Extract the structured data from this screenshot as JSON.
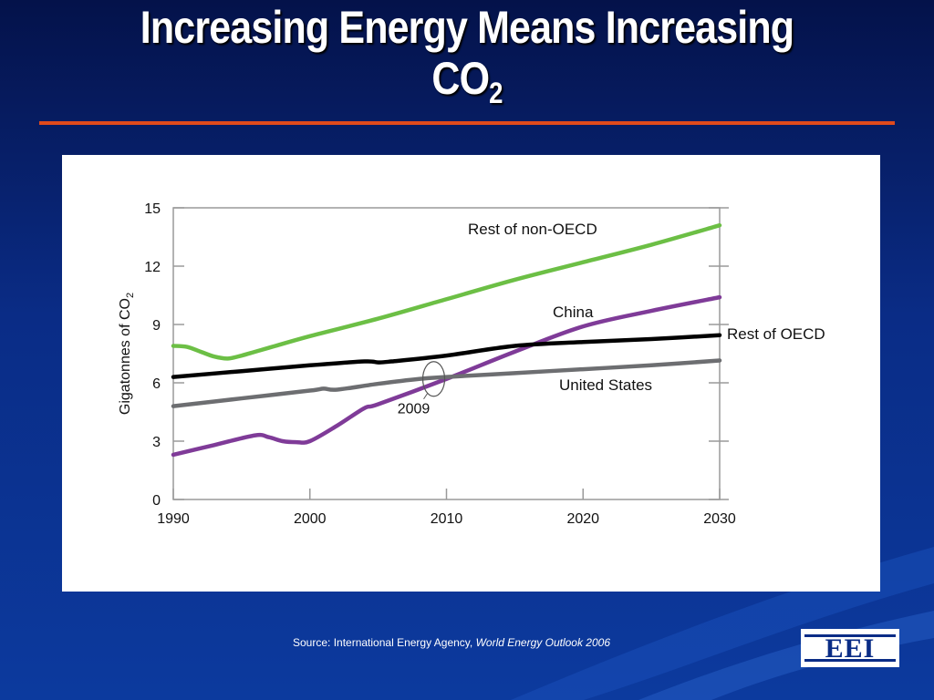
{
  "slide": {
    "title_line1": "Increasing Energy Means Increasing",
    "title_line2": "CO",
    "title_sub": "2",
    "source_prefix": "Source:  International Energy Agency, ",
    "source_italic": "World Energy Outlook 2006",
    "logo_text": "EEI",
    "colors": {
      "background": "#0a2c86",
      "title_rule": "#e04a1c",
      "panel": "#ffffff"
    }
  },
  "chart_data": {
    "type": "line",
    "title": "",
    "xlabel": "",
    "ylabel": "Gigatonnes of CO",
    "ylabel_sub": "2",
    "xlim": [
      1990,
      2030
    ],
    "ylim": [
      0,
      15
    ],
    "xticks": [
      1990,
      2000,
      2010,
      2020,
      2030
    ],
    "yticks": [
      0,
      3,
      6,
      9,
      12,
      15
    ],
    "grid": false,
    "series": [
      {
        "name": "Rest of non-OECD",
        "color": "#6cbf45",
        "x": [
          1990,
          1991,
          1992,
          1993,
          1994,
          1995,
          1996,
          1997,
          2000,
          2005,
          2010,
          2015,
          2020,
          2025,
          2030
        ],
        "values": [
          7.9,
          7.85,
          7.6,
          7.35,
          7.25,
          7.4,
          7.6,
          7.8,
          8.4,
          9.3,
          10.3,
          11.3,
          12.2,
          13.1,
          14.1
        ]
      },
      {
        "name": "China",
        "color": "#7f3b98",
        "x": [
          1990,
          1993,
          1996,
          1997,
          1998,
          1999,
          2000,
          2002,
          2004,
          2005,
          2010,
          2015,
          2020,
          2025,
          2030
        ],
        "values": [
          2.3,
          2.8,
          3.3,
          3.2,
          3.0,
          2.95,
          3.0,
          3.8,
          4.7,
          4.9,
          6.2,
          7.6,
          8.9,
          9.7,
          10.4
        ]
      },
      {
        "name": "Rest of OECD",
        "color": "#000000",
        "x": [
          1990,
          1995,
          2000,
          2004,
          2005,
          2006,
          2010,
          2015,
          2020,
          2025,
          2030
        ],
        "values": [
          6.3,
          6.6,
          6.9,
          7.1,
          7.05,
          7.1,
          7.4,
          7.9,
          8.1,
          8.25,
          8.45
        ]
      },
      {
        "name": "United States",
        "color": "#6d6e71",
        "x": [
          1990,
          1995,
          2000,
          2001,
          2002,
          2005,
          2008,
          2010,
          2015,
          2020,
          2025,
          2030
        ],
        "values": [
          4.8,
          5.2,
          5.6,
          5.7,
          5.65,
          5.95,
          6.2,
          6.3,
          6.5,
          6.7,
          6.9,
          7.15
        ]
      }
    ],
    "annotations": [
      {
        "text": "2009",
        "x": 2009,
        "y": 6.2,
        "kind": "circle-marker"
      }
    ]
  }
}
